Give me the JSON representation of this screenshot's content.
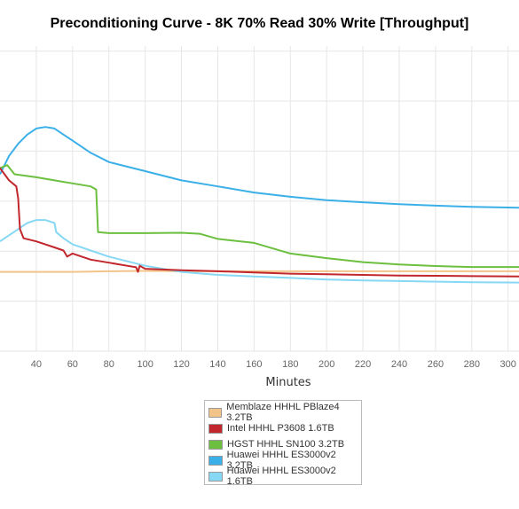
{
  "chart_data": {
    "type": "line",
    "title": "Preconditioning Curve - 8K 70% Read 30% Write [Throughput]",
    "xlabel": "Minutes",
    "ylabel": "",
    "xlim": [
      20,
      306
    ],
    "ylim": [
      0,
      1
    ],
    "grid": true,
    "legend_position": "bottom",
    "xticks": [
      40,
      60,
      80,
      100,
      120,
      140,
      160,
      180,
      200,
      220,
      240,
      260,
      280,
      300
    ],
    "series": [
      {
        "name": "Memblaze HHHL PBlaze4 3.2TB",
        "color": "#f2c48a",
        "x": [
          20,
          40,
          60,
          80,
          100,
          120,
          140,
          160,
          180,
          200,
          220,
          240,
          260,
          280,
          306
        ],
        "y": [
          0.26,
          0.26,
          0.26,
          0.262,
          0.263,
          0.262,
          0.262,
          0.262,
          0.262,
          0.262,
          0.262,
          0.262,
          0.262,
          0.262,
          0.262
        ]
      },
      {
        "name": "Intel HHHL P3608 1.6TB",
        "color": "#c1272d",
        "x": [
          20,
          25,
          29,
          30,
          31,
          33,
          40,
          50,
          55,
          57,
          60,
          70,
          80,
          90,
          95,
          96,
          97,
          100,
          120,
          140,
          160,
          180,
          200,
          220,
          240,
          260,
          280,
          306
        ],
        "y": [
          0.6,
          0.56,
          0.54,
          0.5,
          0.4,
          0.37,
          0.36,
          0.34,
          0.33,
          0.31,
          0.32,
          0.3,
          0.29,
          0.28,
          0.275,
          0.26,
          0.28,
          0.27,
          0.265,
          0.262,
          0.258,
          0.254,
          0.252,
          0.25,
          0.248,
          0.247,
          0.246,
          0.245
        ]
      },
      {
        "name": "HGST HHHL SN100 3.2TB",
        "color": "#6cbf3f",
        "x": [
          20,
          24,
          28,
          40,
          50,
          60,
          70,
          73,
          74,
          80,
          100,
          120,
          130,
          140,
          160,
          180,
          200,
          220,
          240,
          260,
          280,
          306
        ],
        "y": [
          0.6,
          0.61,
          0.58,
          0.57,
          0.56,
          0.55,
          0.54,
          0.53,
          0.39,
          0.387,
          0.387,
          0.388,
          0.385,
          0.368,
          0.355,
          0.32,
          0.305,
          0.292,
          0.284,
          0.279,
          0.276,
          0.276
        ]
      },
      {
        "name": "Huawei HHHL ES3000v2 3.2TB",
        "color": "#3bb0e8",
        "x": [
          20,
          25,
          30,
          35,
          40,
          45,
          50,
          55,
          60,
          70,
          80,
          100,
          120,
          140,
          160,
          180,
          200,
          220,
          240,
          260,
          280,
          306
        ],
        "y": [
          0.58,
          0.64,
          0.68,
          0.71,
          0.73,
          0.735,
          0.73,
          0.71,
          0.69,
          0.65,
          0.62,
          0.59,
          0.56,
          0.54,
          0.52,
          0.506,
          0.495,
          0.488,
          0.482,
          0.477,
          0.473,
          0.47
        ]
      },
      {
        "name": "Huawei HHHL ES3000v2 1.6TB",
        "color": "#86d8f5",
        "x": [
          20,
          25,
          30,
          35,
          40,
          45,
          50,
          51,
          55,
          60,
          70,
          80,
          100,
          120,
          140,
          160,
          180,
          200,
          220,
          240,
          260,
          280,
          306
        ],
        "y": [
          0.36,
          0.38,
          0.4,
          0.42,
          0.43,
          0.43,
          0.42,
          0.39,
          0.37,
          0.35,
          0.33,
          0.31,
          0.28,
          0.26,
          0.25,
          0.245,
          0.24,
          0.235,
          0.232,
          0.23,
          0.228,
          0.226,
          0.225
        ]
      }
    ]
  }
}
